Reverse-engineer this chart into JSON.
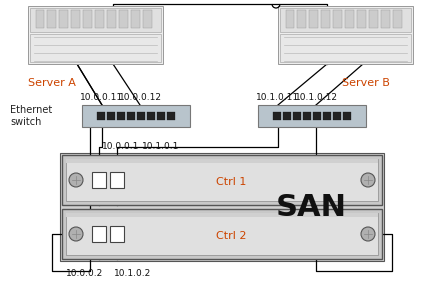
{
  "bg_color": "#ffffff",
  "server_a_label": "Server A",
  "server_b_label": "Server B",
  "eth_switch_label": "Ethernet\nswitch",
  "san_label": "SAN",
  "ctrl1_label": "Ctrl 1",
  "ctrl2_label": "Ctrl 2",
  "ip_a1": "10.0.0.11",
  "ip_a2": "10.0.0.12",
  "ip_b1": "10.1.0.11",
  "ip_b2": "10.1.0.12",
  "ip_sw1_top": "10.0.0.1",
  "ip_sw2_top": "10.1.0.1",
  "ip_san1_bot": "10.0.0.2",
  "ip_san2_bot": "10.1.0.2",
  "label_color": "#cc4400",
  "san_label_color": "#000000",
  "line_color": "#000000",
  "switch_fill": "#b8c4cc",
  "switch_edge": "#777777",
  "fig_width": 4.48,
  "fig_height": 2.91,
  "dpi": 100
}
